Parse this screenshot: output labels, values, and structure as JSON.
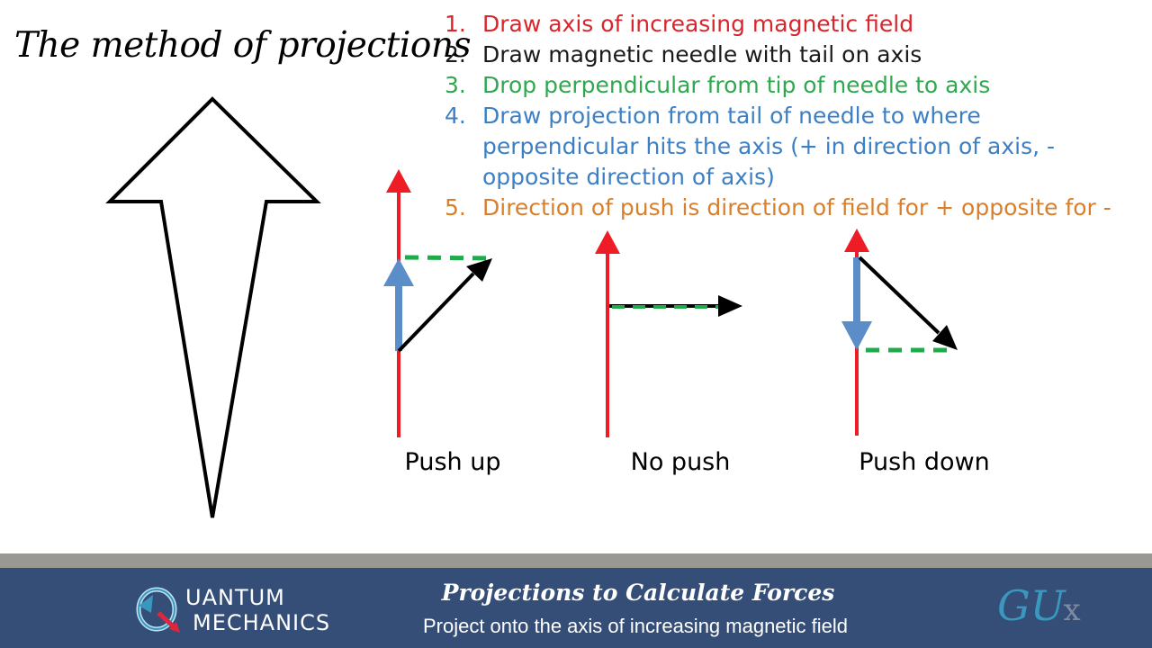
{
  "title": "The method of projections",
  "steps": [
    {
      "num": "1.",
      "text": "Draw axis of increasing magnetic field",
      "color": "#d8262c"
    },
    {
      "num": "2.",
      "text": "Draw magnetic needle with tail on axis",
      "color": "#1a1a1a"
    },
    {
      "num": "3.",
      "text": "Drop perpendicular from tip of needle to axis",
      "color": "#2fa84f"
    },
    {
      "num": "4.",
      "text": "Draw projection from tail of needle to where",
      "text2": "perpendicular hits the axis (+ in direction of axis, -",
      "text3": "opposite direction of axis)",
      "color": "#3d7fc4"
    },
    {
      "num": "5.",
      "text": "Direction of push is direction of field for + opposite for -",
      "color": "#d97f2b"
    }
  ],
  "cases": [
    {
      "caption": "Push up",
      "projection": "positive"
    },
    {
      "caption": "No push",
      "projection": "zero"
    },
    {
      "caption": "Push down",
      "projection": "negative"
    }
  ],
  "colors": {
    "axis": "#ee1c24",
    "needle": "#000000",
    "perpendicular": "#1faa4c",
    "projection": "#5b8ec9",
    "footer_bg": "#354e77",
    "footer_divider": "#9a9893"
  },
  "footer": {
    "logo_line1": "UANTUM",
    "logo_line2": "MECHANICS",
    "title": "Projections to Calculate Forces",
    "subtitle": "Project onto the axis of increasing magnetic field",
    "brand_main": "GU",
    "brand_x": "x"
  }
}
